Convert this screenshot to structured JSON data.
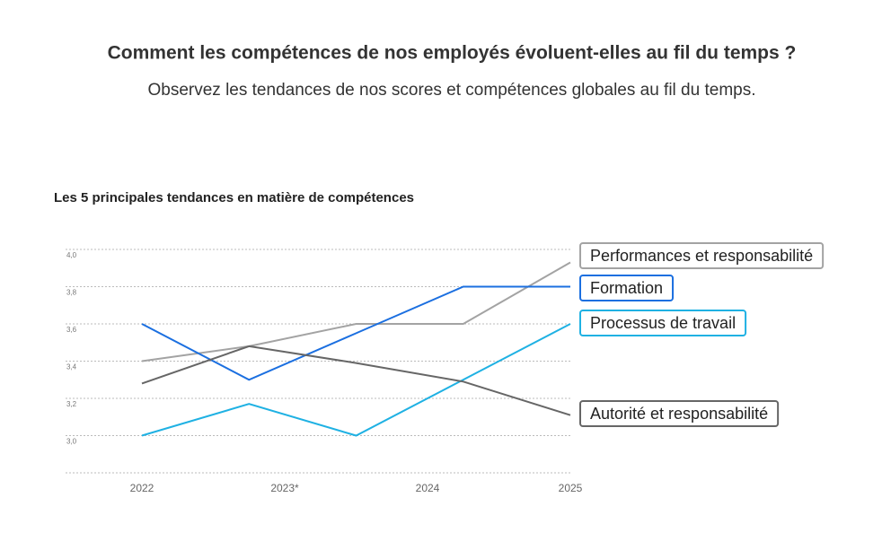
{
  "header": {
    "title": "Comment les compétences de nos employés évoluent-elles au fil du temps ?",
    "subtitle": "Observez les tendances de nos scores et compétences globales au fil du temps."
  },
  "chart_data": {
    "type": "line",
    "title": "Les 5 principales tendances en matière de compétences",
    "x": [
      2022,
      2022.75,
      2023.5,
      2024.25,
      2025
    ],
    "xlim": [
      2022,
      2025
    ],
    "xticks": [
      2022,
      {
        "value": 2023,
        "label": "2023*"
      },
      2024,
      2025
    ],
    "ylim": [
      2.8,
      4.0
    ],
    "yticks": [
      {
        "value": 3.0,
        "label": "3,0"
      },
      {
        "value": 3.2,
        "label": "3,2"
      },
      {
        "value": 3.4,
        "label": "3,4"
      },
      {
        "value": 3.6,
        "label": "3,6"
      },
      {
        "value": 3.8,
        "label": "3,8"
      },
      {
        "value": 4.0,
        "label": "4,0"
      }
    ],
    "grid": true,
    "series": [
      {
        "name": "Performances et responsabilité",
        "color": "#a3a3a3",
        "values": [
          3.4,
          3.48,
          3.6,
          3.6,
          3.93
        ]
      },
      {
        "name": "Formation",
        "color": "#1b6fe0",
        "values": [
          3.6,
          3.3,
          3.55,
          3.8,
          3.8
        ]
      },
      {
        "name": "Processus de travail",
        "color": "#1fb1e3",
        "values": [
          3.0,
          3.17,
          3.0,
          3.3,
          3.6
        ]
      },
      {
        "name": "Autorité et responsabilité",
        "color": "#666666",
        "values": [
          3.28,
          3.48,
          3.39,
          3.29,
          3.11
        ]
      }
    ]
  }
}
